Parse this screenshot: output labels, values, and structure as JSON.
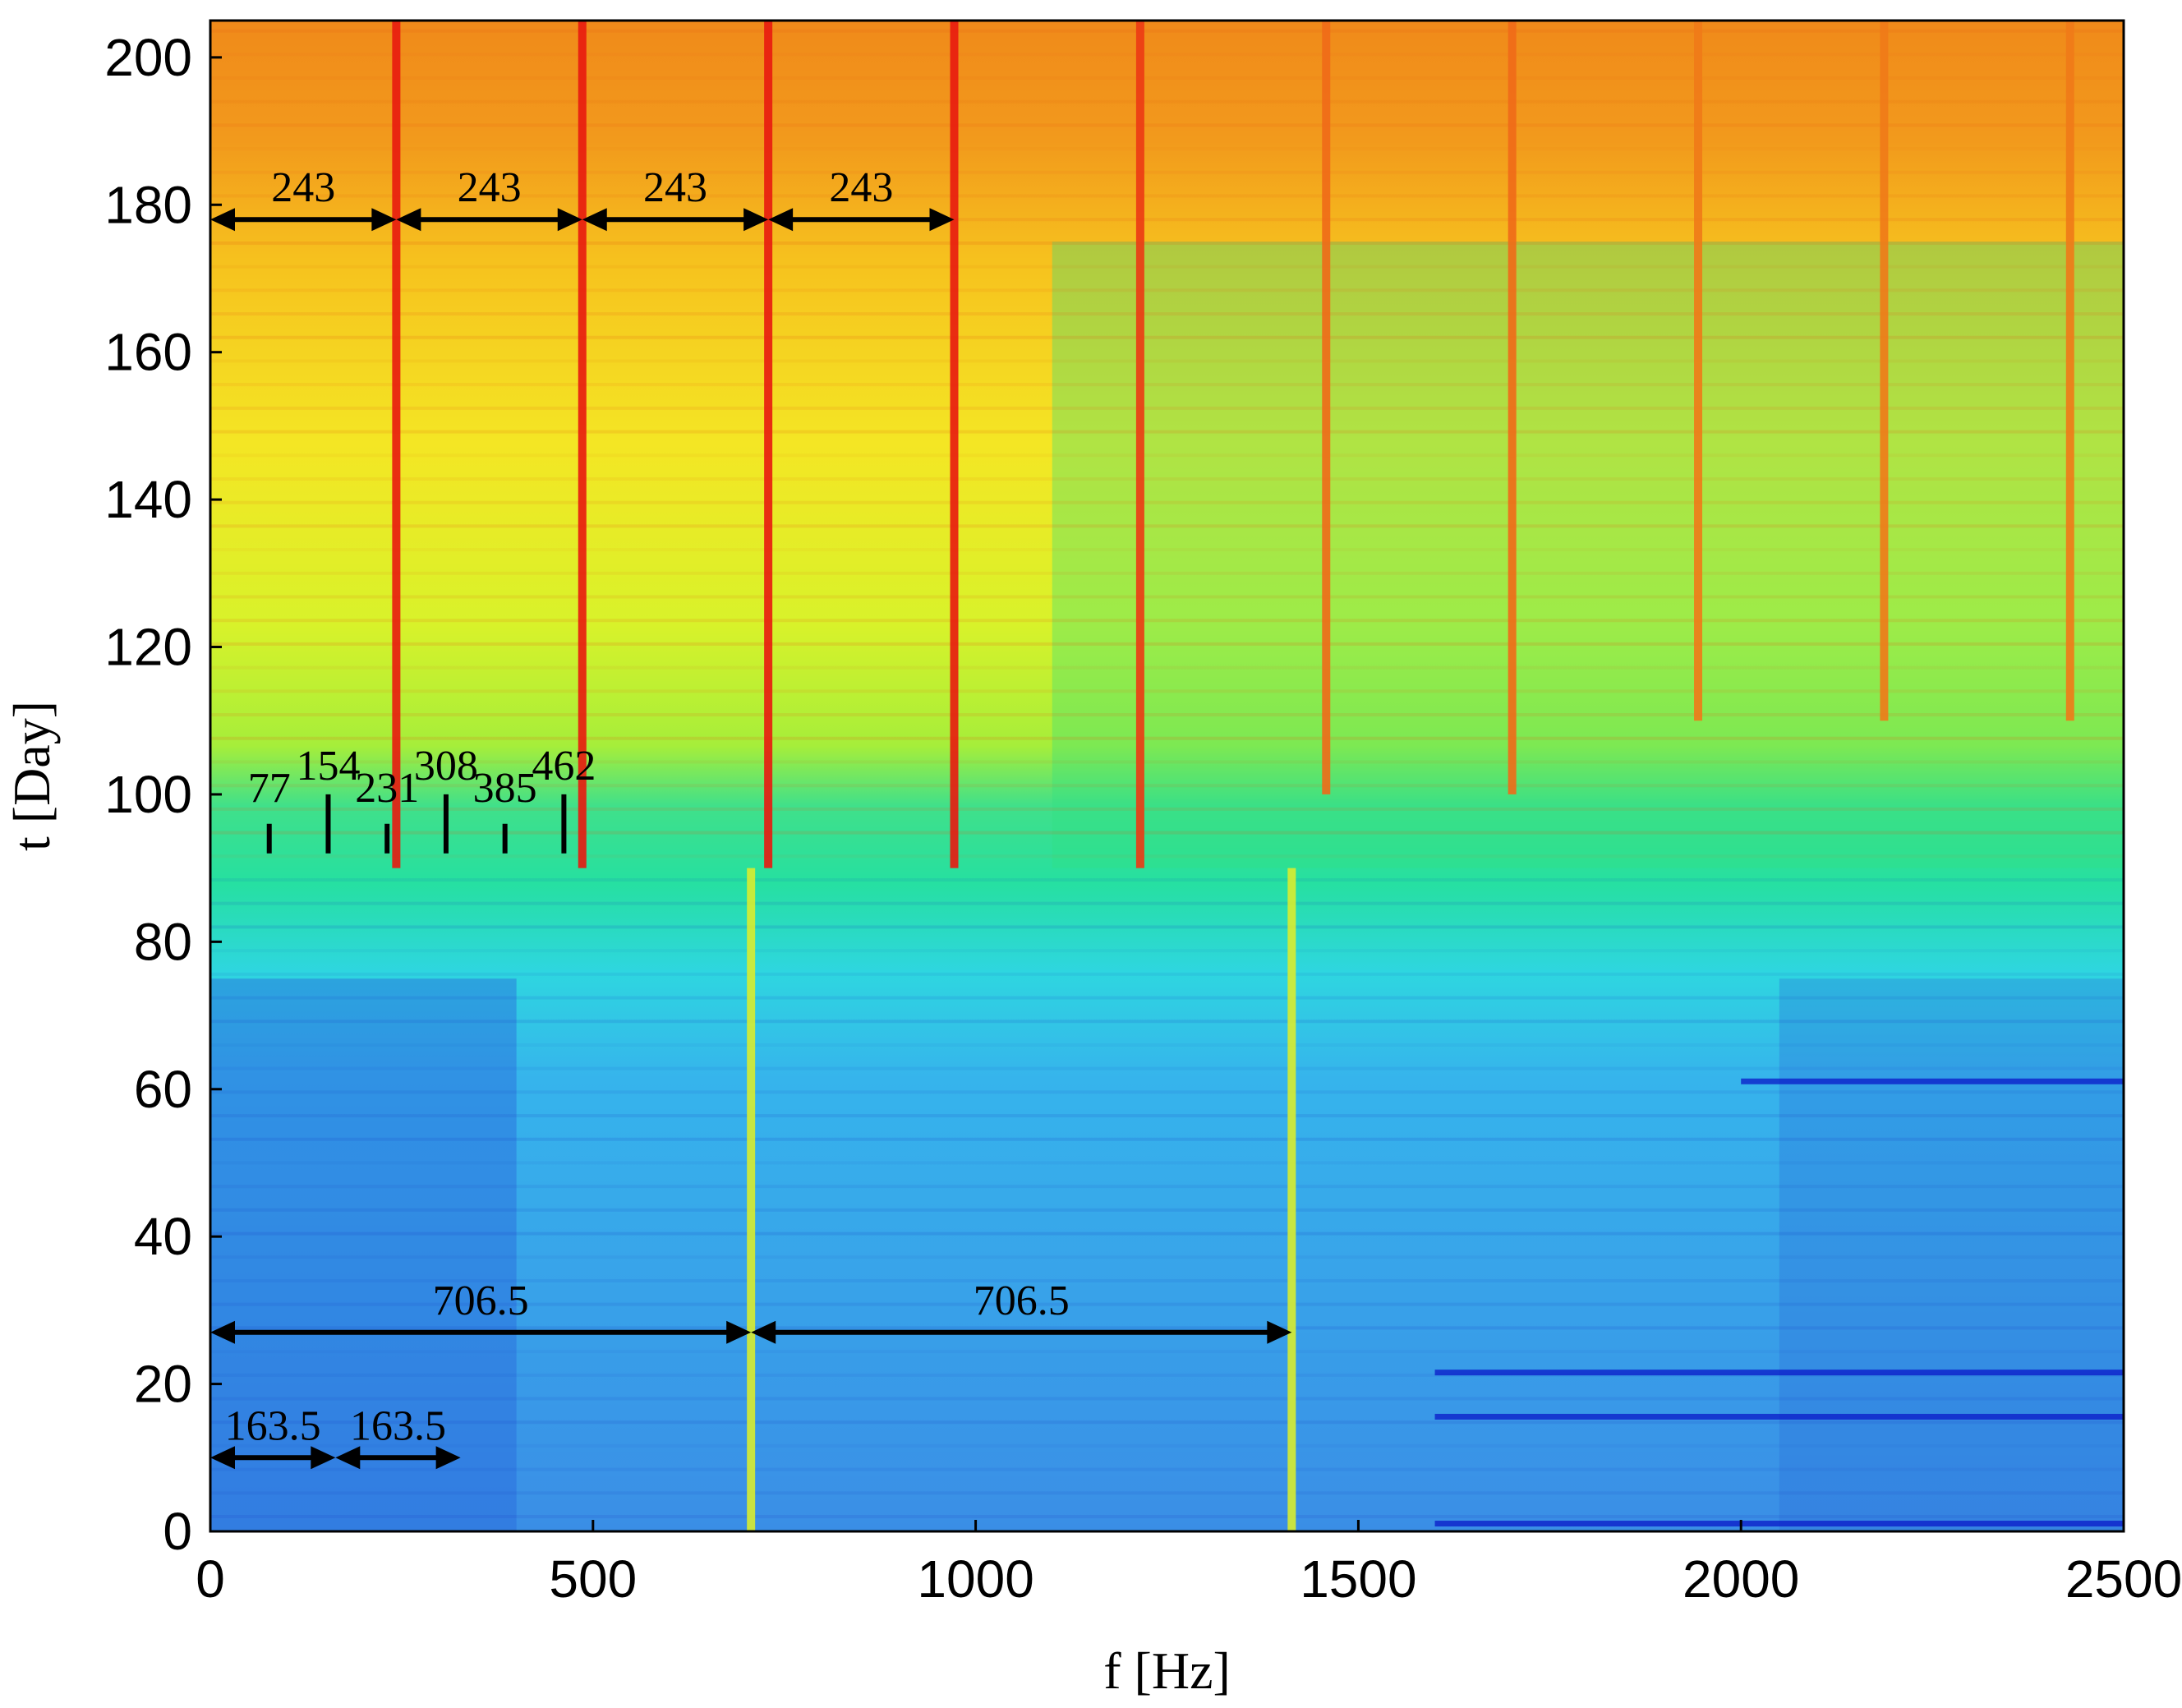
{
  "chart_data": {
    "type": "heatmap",
    "title": "",
    "xlabel": "f [Hz]",
    "ylabel": "t [Day]",
    "xlim": [
      0,
      2500
    ],
    "ylim": [
      0,
      205
    ],
    "x_ticks": [
      0,
      500,
      1000,
      1500,
      2000,
      2500
    ],
    "y_ticks": [
      0,
      20,
      40,
      60,
      80,
      100,
      120,
      140,
      160,
      180,
      200
    ],
    "x_tick_labels": [
      "0",
      "500",
      "1000",
      "1500",
      "2000",
      "2500"
    ],
    "y_tick_labels": [
      "0",
      "20",
      "40",
      "60",
      "80",
      "100",
      "120",
      "140",
      "160",
      "180",
      "200"
    ],
    "grid": false,
    "colormap": [
      "#0a14c8",
      "#2a7de0",
      "#2ecbe8",
      "#20e090",
      "#9af03a",
      "#f5f51e",
      "#f8c81a",
      "#f07a18",
      "#e41e12"
    ],
    "harmonic_lines": [
      {
        "f": 243,
        "t_start": 90,
        "t_end": 205,
        "color": "#e81a10"
      },
      {
        "f": 486,
        "t_start": 90,
        "t_end": 205,
        "color": "#e81a10"
      },
      {
        "f": 729,
        "t_start": 90,
        "t_end": 205,
        "color": "#e81a10"
      },
      {
        "f": 972,
        "t_start": 90,
        "t_end": 205,
        "color": "#e81a10"
      },
      {
        "f": 1215,
        "t_start": 90,
        "t_end": 205,
        "color": "#ec3a14"
      },
      {
        "f": 1458,
        "t_start": 100,
        "t_end": 205,
        "color": "#f06a18"
      },
      {
        "f": 1701,
        "t_start": 100,
        "t_end": 205,
        "color": "#f06a18"
      },
      {
        "f": 1944,
        "t_start": 110,
        "t_end": 205,
        "color": "#f07a18"
      },
      {
        "f": 2187,
        "t_start": 110,
        "t_end": 205,
        "color": "#f07a18"
      },
      {
        "f": 2430,
        "t_start": 110,
        "t_end": 205,
        "color": "#f07a18"
      },
      {
        "f": 706.5,
        "t_start": 0,
        "t_end": 90,
        "color": "#d8ec30"
      },
      {
        "f": 1413,
        "t_start": 0,
        "t_end": 90,
        "color": "#d8ec30"
      }
    ],
    "annotations": {
      "arrows_243": {
        "label": "243",
        "t": 178,
        "segments": [
          [
            0,
            243
          ],
          [
            243,
            486
          ],
          [
            486,
            729
          ],
          [
            729,
            972
          ]
        ]
      },
      "ticks_77": {
        "t_base": 92,
        "labels": [
          "77",
          "154",
          "231",
          "308",
          "385",
          "462"
        ],
        "f": [
          77,
          154,
          231,
          308,
          385,
          462
        ],
        "t_top": [
          96,
          100,
          96,
          100,
          96,
          100
        ],
        "label_t": [
          99,
          102,
          99,
          102,
          99,
          102
        ]
      },
      "arrows_706": {
        "label": "706.5",
        "t": 27,
        "segments": [
          [
            0,
            706.5
          ],
          [
            706.5,
            1413
          ]
        ]
      },
      "arrows_163": {
        "label": "163.5",
        "t": 10,
        "segments": [
          [
            0,
            163.5
          ],
          [
            163.5,
            327
          ]
        ]
      }
    }
  }
}
